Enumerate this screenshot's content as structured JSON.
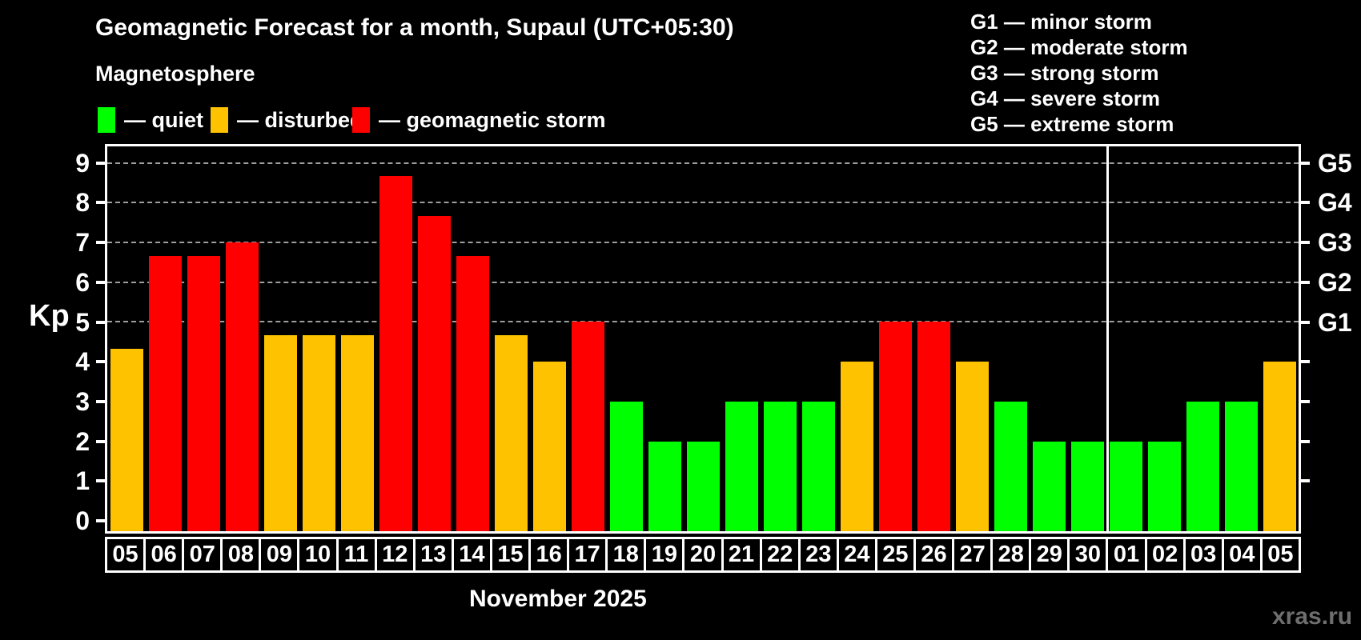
{
  "header": {
    "title": "Geomagnetic Forecast for a month, Supaul (UTC+05:30)",
    "subtitle": "Magnetosphere"
  },
  "legend": {
    "items": [
      {
        "name": "quiet",
        "label": "— quiet",
        "color": "#00ff00"
      },
      {
        "name": "disturbed",
        "label": "— disturbed",
        "color": "#ffc200"
      },
      {
        "name": "storm",
        "label": "— geomagnetic storm",
        "color": "#ff0000"
      }
    ]
  },
  "g_legend": {
    "lines": [
      "G1 — minor storm",
      "G2 — moderate storm",
      "G3 — strong storm",
      "G4 — severe storm",
      "G5 — extreme storm"
    ]
  },
  "axis": {
    "y_title": "Kp",
    "yticks": [
      0,
      1,
      2,
      3,
      4,
      5,
      6,
      7,
      8,
      9
    ]
  },
  "footer": {
    "month_label": "November 2025",
    "watermark": "xras.ru"
  },
  "chart_data": {
    "type": "bar",
    "title": "Geomagnetic Forecast for a month, Supaul (UTC+05:30)",
    "subtitle": "Magnetosphere",
    "xlabel": "November 2025",
    "ylabel": "Kp",
    "ylim": [
      0,
      9.4
    ],
    "yticks": [
      0,
      1,
      2,
      3,
      4,
      5,
      6,
      7,
      8,
      9
    ],
    "gridlines_at_kp": [
      5,
      6,
      7,
      8,
      9
    ],
    "grid_style": "dashed horizontal lines at storm levels only",
    "legend_position": "top-left",
    "categories": [
      "05",
      "06",
      "07",
      "08",
      "09",
      "10",
      "11",
      "12",
      "13",
      "14",
      "15",
      "16",
      "17",
      "18",
      "19",
      "20",
      "21",
      "22",
      "23",
      "24",
      "25",
      "26",
      "27",
      "28",
      "29",
      "30",
      "01",
      "02",
      "03",
      "04",
      "05"
    ],
    "values": [
      4.33,
      6.67,
      6.67,
      7,
      4.67,
      4.67,
      4.67,
      8.67,
      7.67,
      6.67,
      4.67,
      4,
      5,
      3,
      2,
      2,
      3,
      3,
      3,
      4,
      5,
      5,
      4,
      3,
      2,
      2,
      2,
      2,
      3,
      3,
      4
    ],
    "month_separator_after_index": 25,
    "color_rules": {
      "storm_min_kp": 5,
      "disturbed_min_kp": 4
    },
    "colors": {
      "quiet": "#00ff00",
      "disturbed": "#ffc200",
      "storm": "#ff0000"
    },
    "right_axis_labels": [
      {
        "kp": 5,
        "text": "G1"
      },
      {
        "kp": 6,
        "text": "G2"
      },
      {
        "kp": 7,
        "text": "G3"
      },
      {
        "kp": 8,
        "text": "G4"
      },
      {
        "kp": 9,
        "text": "G5"
      }
    ]
  }
}
